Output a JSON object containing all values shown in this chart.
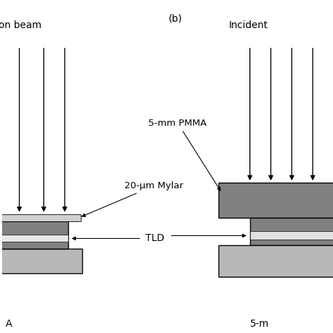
{
  "bg_color": "#ffffff",
  "gray_dark": "#808080",
  "gray_light": "#b8b8b8",
  "gray_mylar": "#d0d0d0",
  "text_color": "#000000",
  "label_beam": "on beam",
  "label_b": "(b)",
  "label_incident": "Incident",
  "label_pmma": "5-mm PMMA",
  "label_mylar": "20-μm Mylar",
  "label_tld": "TLD",
  "label_a": "A",
  "label_5m": "5-m"
}
